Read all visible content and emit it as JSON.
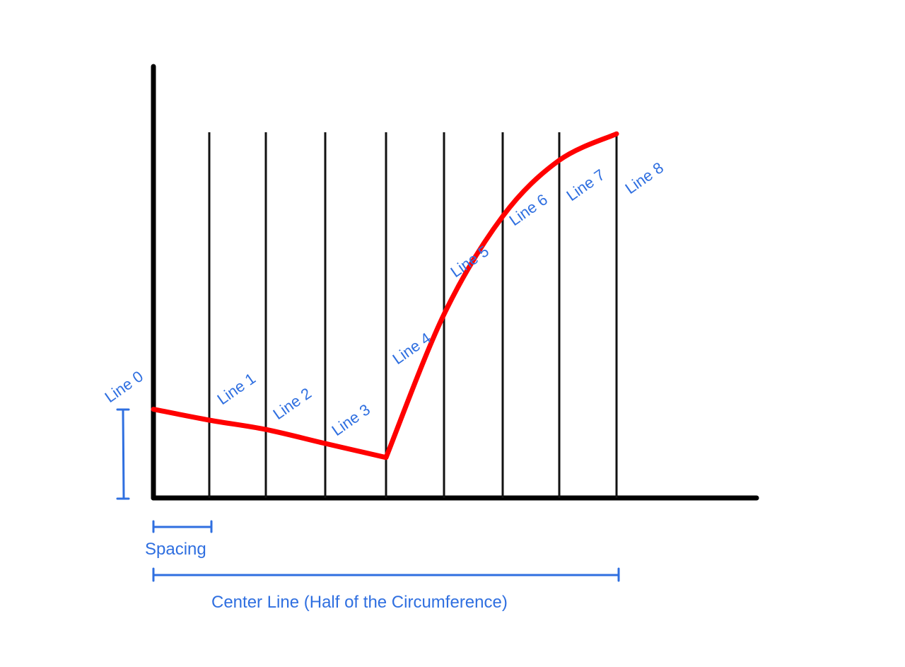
{
  "colors": {
    "axis": "#000000",
    "guide": "#111111",
    "curve": "#ff0000",
    "annotation": "#2f6fe0",
    "background": "#ffffff"
  },
  "line_labels": [
    {
      "label": "Line 0",
      "height": 0.57
    },
    {
      "label": "Line 1",
      "height": 0.5
    },
    {
      "label": "Line 2",
      "height": 0.44
    },
    {
      "label": "Line 3",
      "height": 0.35
    },
    {
      "label": "Line 4",
      "height": 0.26
    },
    {
      "label": "Line 5",
      "height": 1.18
    },
    {
      "label": "Line 6",
      "height": 1.81
    },
    {
      "label": "Line 7",
      "height": 2.17
    },
    {
      "label": "Line 8",
      "height": 2.34
    }
  ],
  "annotations": {
    "spacing": "Spacing",
    "center_line": "Center Line (Half of the Circumference)"
  }
}
